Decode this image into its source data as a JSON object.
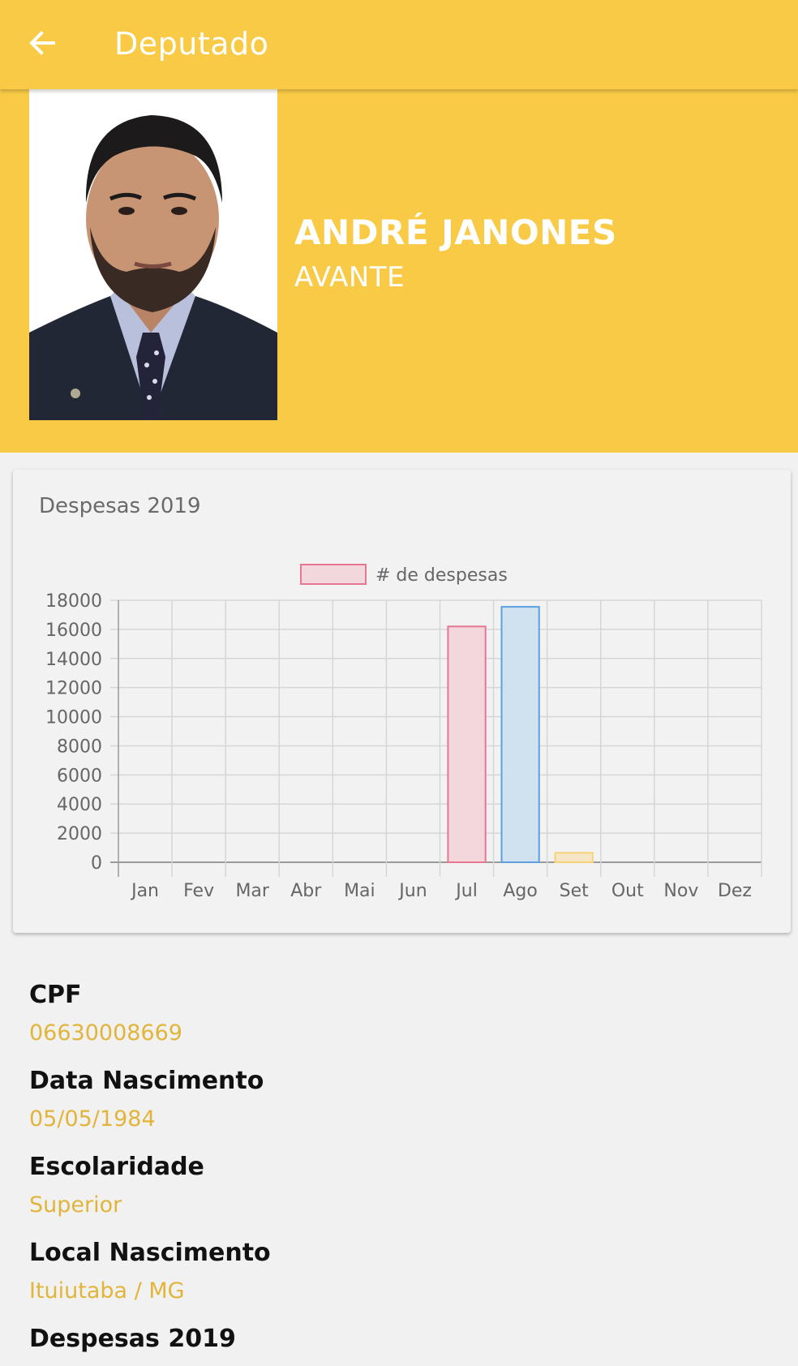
{
  "appbar": {
    "title": "Deputado",
    "back_icon": "arrow-left-icon"
  },
  "profile": {
    "name": "ANDRÉ JANONES",
    "party": "AVANTE"
  },
  "colors": {
    "primary": "#f8ca45",
    "value_text": "#e1b43a"
  },
  "chart_card": {
    "title": "Despesas 2019"
  },
  "chart_data": {
    "type": "bar",
    "categories": [
      "Jan",
      "Fev",
      "Mar",
      "Abr",
      "Mai",
      "Jun",
      "Jul",
      "Ago",
      "Set",
      "Out",
      "Nov",
      "Dez"
    ],
    "series": [
      {
        "name": "# de despesas",
        "values": [
          0,
          0,
          0,
          0,
          0,
          0,
          16200,
          17550,
          650,
          0,
          0,
          0
        ],
        "fill_colors": [
          "#f2d7dd",
          "#d0e1f0",
          "#f4e6c6",
          "#dcebe6",
          "#e3dcef",
          "#f6e4d2",
          "#f2d7dd",
          "#d0e1f0",
          "#f4e6c6",
          "#dcebe6",
          "#e3dcef",
          "#f6e4d2"
        ],
        "stroke_colors": [
          "#e87591",
          "#5ca0e0",
          "#f6d377",
          "#71c1bd",
          "#a080e0",
          "#f4a860",
          "#e87591",
          "#5ca0e0",
          "#f6d377",
          "#71c1bd",
          "#a080e0",
          "#f4a860"
        ]
      }
    ],
    "yticks": [
      "18000",
      "16000",
      "14000",
      "12000",
      "10000",
      "8000",
      "6000",
      "4000",
      "2000",
      "0"
    ],
    "ylim": [
      0,
      18000
    ],
    "grid": true,
    "legend": "top-center"
  },
  "details": [
    {
      "label": "CPF",
      "value": "06630008669"
    },
    {
      "label": "Data Nascimento",
      "value": "05/05/1984"
    },
    {
      "label": "Escolaridade",
      "value": "Superior"
    },
    {
      "label": "Local Nascimento",
      "value": "Ituiutaba / MG"
    },
    {
      "label": "Despesas 2019",
      "value": ""
    }
  ]
}
